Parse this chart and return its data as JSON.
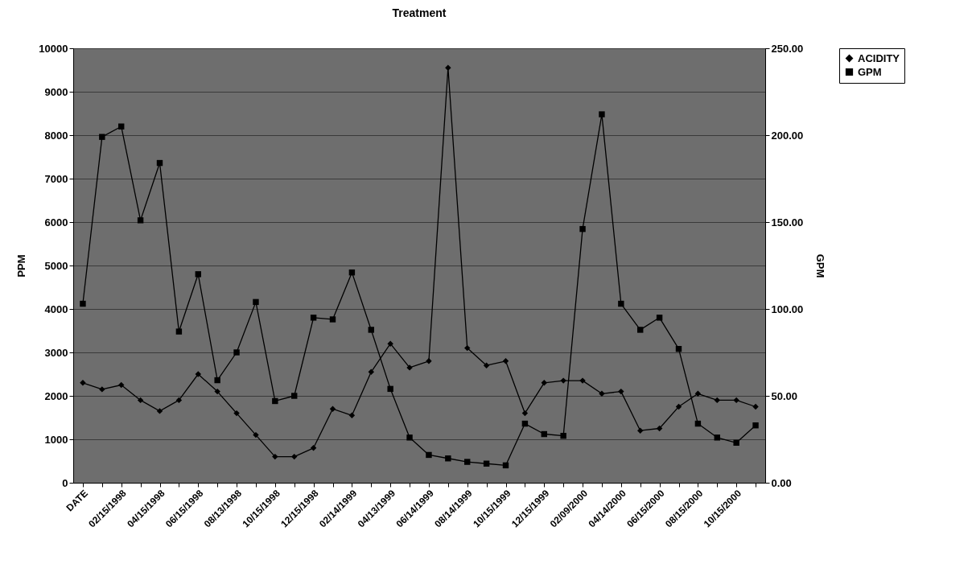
{
  "chart_data": {
    "type": "line",
    "title": "Treatment",
    "ylabel": "PPM",
    "y2label": "GPM",
    "categories": [
      "DATE",
      null,
      "02/15/1998",
      null,
      "04/15/1998",
      null,
      "06/15/1998",
      null,
      "08/13/1998",
      null,
      "10/15/1998",
      null,
      "12/15/1998",
      null,
      "02/14/1999",
      null,
      "04/13/1999",
      null,
      "06/14/1999",
      null,
      "08/14/1999",
      null,
      "10/15/1999",
      null,
      "12/15/1999",
      null,
      "02/09/2000",
      null,
      "04/14/2000",
      null,
      "06/15/2000",
      null,
      "08/15/2000",
      null,
      "10/15/2000",
      null
    ],
    "series": [
      {
        "name": "ACIDITY",
        "color": "#000000",
        "marker": "diamond",
        "values": [
          2300,
          2150,
          2250,
          1900,
          1650,
          1900,
          2500,
          2100,
          1600,
          1100,
          600,
          600,
          800,
          1700,
          1550,
          2550,
          3200,
          2650,
          2800,
          9550,
          3100,
          2700,
          2800,
          1600,
          2300,
          2350,
          2350,
          2050,
          2100,
          1200,
          1250,
          1750,
          2050,
          1900,
          1900,
          1750
        ]
      },
      {
        "name": "GPM",
        "color": "#000000",
        "marker": "square",
        "axis": "y2",
        "values": [
          103,
          199,
          205,
          151,
          184,
          87,
          120,
          59,
          75,
          104,
          47,
          50,
          95,
          94,
          121,
          88,
          54,
          26,
          16,
          14,
          12,
          11,
          10,
          34,
          28,
          27,
          146,
          212,
          103,
          88,
          95,
          77,
          34,
          26,
          23,
          33
        ]
      }
    ],
    "ylim": [
      0,
      10000
    ],
    "yticks": [
      0,
      1000,
      2000,
      3000,
      4000,
      5000,
      6000,
      7000,
      8000,
      9000,
      10000
    ],
    "y2lim": [
      0,
      250
    ],
    "y2ticks": [
      {
        "value": 0,
        "label": "0.00"
      },
      {
        "value": 50,
        "label": "50.00"
      },
      {
        "value": 100,
        "label": "100.00"
      },
      {
        "value": 150,
        "label": "150.00"
      },
      {
        "value": 200,
        "label": "200.00"
      },
      {
        "value": 250,
        "label": "250.00"
      }
    ],
    "grid": "y",
    "legend": "right",
    "line_style": "solid"
  }
}
